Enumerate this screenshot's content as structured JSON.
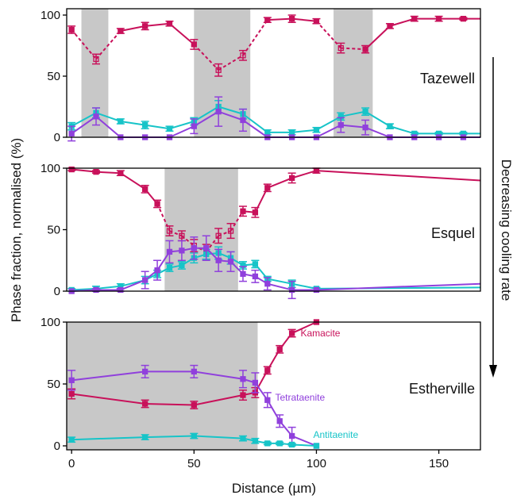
{
  "chart_data": {
    "type": "line",
    "xlabel": "Distance (µm)",
    "ylabel": "Phase fraction, normalised (%)",
    "xlim": [
      -2,
      167
    ],
    "x_ticks": [
      0,
      50,
      100,
      150
    ],
    "y_ticks": [
      0,
      50,
      100
    ],
    "grid": false,
    "side_annotation": "Decreasing cooling rate",
    "colors": {
      "Kamacite": "#c8115a",
      "Tetrataenite": "#9040dc",
      "Antitaenite": "#17c4c8",
      "shading": "#c8c8c8",
      "axis": "#000000"
    },
    "panels": [
      {
        "name": "Tazewell",
        "ylim": [
          0,
          100
        ],
        "shaded": [
          [
            4,
            15
          ],
          [
            50,
            73
          ],
          [
            107,
            123
          ]
        ],
        "series": [
          {
            "key": "Kamacite",
            "x": [
              0,
              10,
              20,
              30,
              40,
              50,
              60,
              70,
              80,
              90,
              100,
              110,
              120,
              130,
              140,
              150,
              160,
              167
            ],
            "y": [
              88,
              64,
              87,
              91,
              93,
              76,
              55,
              67,
              96,
              97,
              95,
              73,
              72,
              91,
              97,
              97,
              97,
              97
            ],
            "err": [
              3,
              4,
              2,
              3,
              2,
              4,
              5,
              4,
              2,
              3,
              2,
              4,
              3,
              2,
              2,
              2,
              1,
              0
            ],
            "dashed_segments": [
              [
                0,
                2
              ],
              [
                5,
                8
              ],
              [
                10,
                12
              ]
            ]
          },
          {
            "key": "Antitaenite",
            "x": [
              0,
              10,
              20,
              30,
              40,
              50,
              60,
              70,
              80,
              90,
              100,
              110,
              120,
              130,
              140,
              150,
              160,
              167
            ],
            "y": [
              9,
              20,
              13,
              10,
              7,
              13,
              25,
              19,
              4,
              4,
              6,
              17,
              21,
              9,
              3,
              3,
              3,
              3
            ],
            "err": [
              3,
              4,
              2,
              3,
              2,
              3,
              5,
              4,
              2,
              2,
              2,
              3,
              3,
              2,
              1,
              1,
              1,
              0
            ]
          },
          {
            "key": "Tetrataenite",
            "x": [
              0,
              10,
              20,
              30,
              40,
              50,
              60,
              70,
              80,
              90,
              100,
              110,
              120,
              130,
              140,
              150,
              160,
              167
            ],
            "y": [
              3,
              17,
              0,
              0,
              0,
              9,
              21,
              14,
              0,
              0,
              0,
              10,
              8,
              0,
              0,
              0,
              0,
              0
            ],
            "err": [
              6,
              7,
              0,
              0,
              0,
              6,
              12,
              9,
              0,
              0,
              0,
              6,
              6,
              0,
              0,
              0,
              0,
              0
            ]
          }
        ]
      },
      {
        "name": "Esquel",
        "ylim": [
          0,
          100
        ],
        "shaded": [
          [
            38,
            68
          ]
        ],
        "series": [
          {
            "key": "Kamacite",
            "x": [
              0,
              10,
              20,
              30,
              35,
              40,
              45,
              50,
              55,
              60,
              65,
              70,
              75,
              80,
              90,
              100,
              167
            ],
            "y": [
              99,
              97,
              96,
              83,
              71,
              49,
              45,
              37,
              32,
              45,
              49,
              65,
              64,
              84,
              92,
              98,
              90
            ],
            "err": [
              1,
              1,
              2,
              3,
              3,
              4,
              4,
              5,
              6,
              6,
              6,
              4,
              4,
              3,
              4,
              2,
              0
            ],
            "dashed_segments": [
              [
                4,
                11
              ]
            ]
          },
          {
            "key": "Antitaenite",
            "x": [
              0,
              10,
              20,
              30,
              35,
              40,
              45,
              50,
              55,
              60,
              65,
              70,
              75,
              80,
              90,
              100,
              167
            ],
            "y": [
              1,
              2,
              4,
              9,
              14,
              19,
              21,
              27,
              30,
              31,
              27,
              21,
              22,
              10,
              6,
              2,
              3
            ],
            "err": [
              1,
              2,
              2,
              3,
              3,
              3,
              3,
              4,
              4,
              5,
              5,
              3,
              3,
              2,
              3,
              1,
              0
            ]
          },
          {
            "key": "Tetrataenite",
            "x": [
              0,
              10,
              20,
              30,
              35,
              40,
              45,
              50,
              55,
              60,
              65,
              70,
              75,
              80,
              90,
              100,
              167
            ],
            "y": [
              0,
              1,
              1,
              9,
              17,
              32,
              33,
              35,
              35,
              25,
              24,
              14,
              12,
              6,
              1,
              1,
              6
            ],
            "err": [
              0,
              1,
              1,
              7,
              8,
              9,
              8,
              9,
              10,
              9,
              8,
              6,
              5,
              5,
              7,
              0,
              0
            ]
          }
        ]
      },
      {
        "name": "Estherville",
        "ylim": [
          0,
          100
        ],
        "shaded": [
          [
            -2,
            76
          ]
        ],
        "series": [
          {
            "key": "Kamacite",
            "label": "Kamacite",
            "x": [
              0,
              30,
              50,
              70,
              75,
              80,
              85,
              90,
              100
            ],
            "y": [
              42,
              34,
              33,
              41,
              43,
              61,
              78,
              91,
              100
            ],
            "err": [
              4,
              3,
              3,
              4,
              4,
              3,
              3,
              3,
              0
            ]
          },
          {
            "key": "Tetrataenite",
            "label": "Tetrataenite",
            "x": [
              0,
              30,
              50,
              70,
              75,
              80,
              85,
              90,
              100
            ],
            "y": [
              53,
              60,
              60,
              54,
              51,
              37,
              20,
              8,
              0
            ],
            "err": [
              8,
              5,
              5,
              7,
              8,
              6,
              5,
              7,
              0
            ]
          },
          {
            "key": "Antitaenite",
            "label": "Antitaenite",
            "x": [
              0,
              30,
              50,
              70,
              75,
              80,
              85,
              90,
              100
            ],
            "y": [
              5,
              7,
              8,
              6,
              4,
              2,
              2,
              1,
              0
            ],
            "err": [
              2,
              2,
              2,
              2,
              2,
              1,
              1,
              1,
              0
            ]
          }
        ]
      }
    ]
  }
}
